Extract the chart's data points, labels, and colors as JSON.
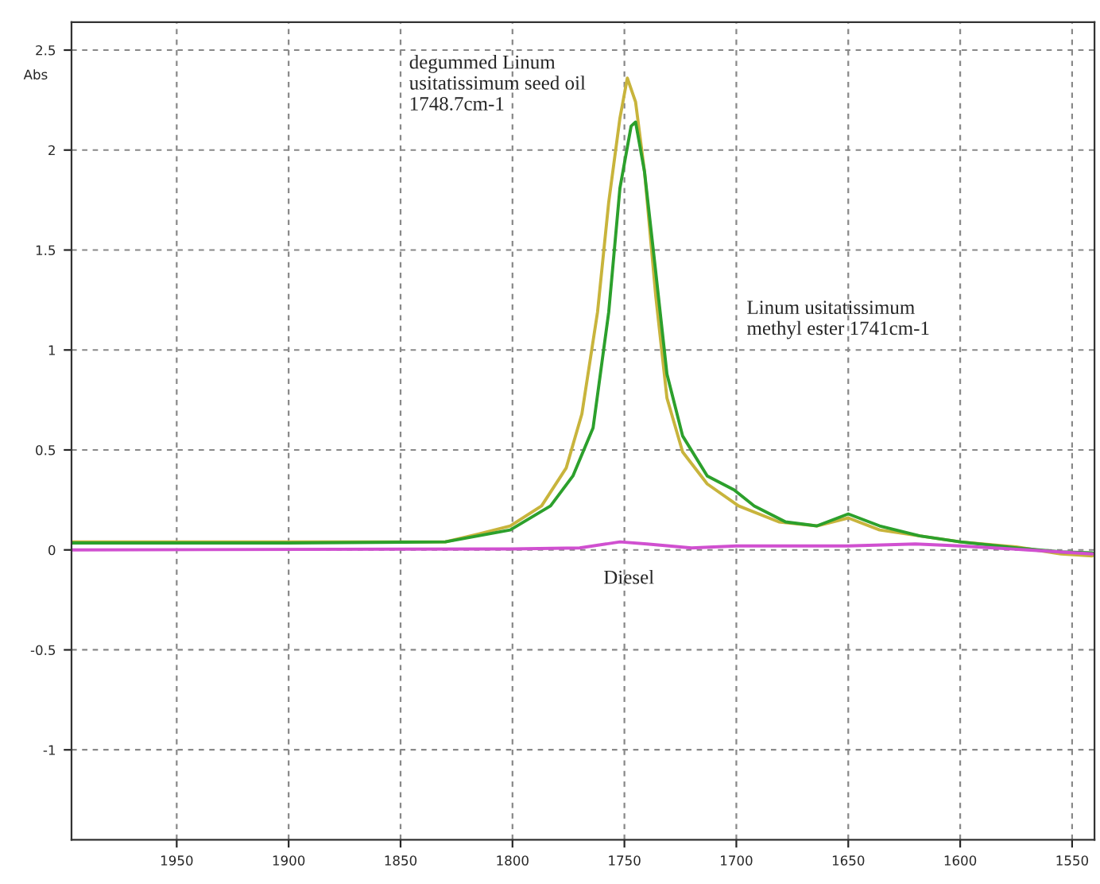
{
  "chart_data": {
    "type": "line",
    "ylabel": "Abs",
    "annotations": [
      "degummed Linum\nusitatissimum seed oil\n1748.7cm-1",
      "Linum usitatissimum\nmethyl ester 1741cm-1",
      "Diesel"
    ],
    "series": [
      {
        "color": "#c8b43c",
        "x": [
          1997,
          1900,
          1830,
          1815,
          1801,
          1787,
          1776,
          1769,
          1762,
          1757,
          1752,
          1748.7,
          1745,
          1741,
          1736,
          1731,
          1724,
          1713,
          1699,
          1681,
          1664,
          1650,
          1636,
          1618,
          1600,
          1575,
          1555,
          1541
        ],
        "values": [
          0.04,
          0.04,
          0.04,
          0.08,
          0.12,
          0.22,
          0.41,
          0.68,
          1.19,
          1.74,
          2.16,
          2.36,
          2.24,
          1.89,
          1.27,
          0.76,
          0.49,
          0.33,
          0.22,
          0.14,
          0.12,
          0.16,
          0.1,
          0.07,
          0.04,
          0.015,
          -0.02,
          -0.03
        ]
      },
      {
        "color": "#2ca02c",
        "x": [
          1997,
          1900,
          1830,
          1801,
          1783,
          1773,
          1764,
          1757,
          1752,
          1747,
          1745,
          1741,
          1736,
          1731,
          1724,
          1713,
          1701,
          1692,
          1678,
          1664,
          1650,
          1636,
          1618,
          1600,
          1575,
          1555,
          1541
        ],
        "values": [
          0.035,
          0.035,
          0.04,
          0.1,
          0.22,
          0.37,
          0.61,
          1.19,
          1.81,
          2.12,
          2.14,
          1.89,
          1.39,
          0.88,
          0.57,
          0.37,
          0.3,
          0.22,
          0.14,
          0.12,
          0.18,
          0.12,
          0.07,
          0.04,
          0.01,
          -0.01,
          -0.015
        ]
      },
      {
        "color": "#d050d0",
        "x": [
          1997,
          1800,
          1770,
          1752,
          1740,
          1720,
          1700,
          1650,
          1620,
          1600,
          1570,
          1541
        ],
        "values": [
          0.0,
          0.005,
          0.01,
          0.04,
          0.03,
          0.01,
          0.02,
          0.02,
          0.03,
          0.02,
          0.0,
          -0.02
        ]
      }
    ],
    "xlim": [
      1997,
      1540
    ],
    "xticks": [
      1950,
      1900,
      1850,
      1800,
      1750,
      1700,
      1650,
      1600,
      1550
    ],
    "ylim": [
      -1.45,
      2.64
    ],
    "yticks": [
      2.5,
      2,
      1.5,
      1,
      0.5,
      0,
      -0.5,
      -1
    ],
    "grid": true,
    "legend": false
  }
}
